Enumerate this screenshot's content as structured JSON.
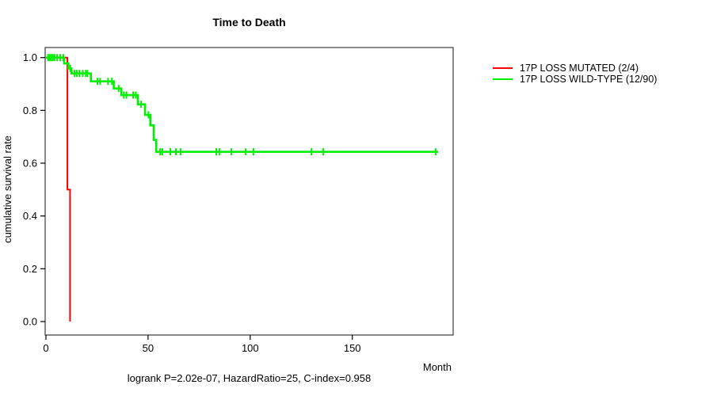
{
  "chart_data": {
    "type": "line",
    "subtype": "kaplan-meier-step",
    "title": "Time to Death",
    "xlabel": "Month",
    "ylabel": "cumulative survival rate",
    "annotation": "logrank P=2.02e-07, HazardRatio=25, C-index=0.958",
    "xlim": [
      0,
      199
    ],
    "ylim": [
      0.0,
      1.0
    ],
    "x_ticks": [
      0,
      50,
      100,
      150
    ],
    "y_ticks": [
      0.0,
      0.2,
      0.4,
      0.6,
      0.8,
      1.0
    ],
    "grid": false,
    "legend_position": "right-outside",
    "axis_color": "#555555",
    "series": [
      {
        "name": "17P LOSS MUTATED (2/4)",
        "color": "#ff0000",
        "steps": [
          [
            0,
            1.0
          ],
          [
            10.5,
            0.5
          ],
          [
            11.8,
            0.0
          ]
        ],
        "end_month": 11.8,
        "censors": []
      },
      {
        "name": "17P LOSS WILD-TYPE (12/90)",
        "color": "#00ee00",
        "steps": [
          [
            0,
            1.0
          ],
          [
            8.9,
            0.978
          ],
          [
            11.0,
            0.959
          ],
          [
            12.5,
            0.94
          ],
          [
            22.0,
            0.91
          ],
          [
            33.2,
            0.883
          ],
          [
            36.9,
            0.858
          ],
          [
            45.0,
            0.823
          ],
          [
            48.5,
            0.783
          ],
          [
            51.1,
            0.743
          ],
          [
            52.8,
            0.688
          ],
          [
            54.0,
            0.643
          ]
        ],
        "end_month": 192,
        "censors": [
          [
            1.0,
            1.0
          ],
          [
            1.8,
            1.0
          ],
          [
            2.6,
            1.0
          ],
          [
            3.4,
            1.0
          ],
          [
            4.2,
            1.0
          ],
          [
            5.5,
            1.0
          ],
          [
            7.0,
            1.0
          ],
          [
            8.5,
            1.0
          ],
          [
            11.9,
            0.959
          ],
          [
            14.0,
            0.94
          ],
          [
            15.1,
            0.94
          ],
          [
            16.4,
            0.94
          ],
          [
            18.0,
            0.94
          ],
          [
            19.5,
            0.94
          ],
          [
            20.3,
            0.94
          ],
          [
            25.2,
            0.91
          ],
          [
            26.5,
            0.91
          ],
          [
            30.4,
            0.91
          ],
          [
            32.3,
            0.91
          ],
          [
            35.6,
            0.883
          ],
          [
            38.1,
            0.858
          ],
          [
            39.4,
            0.858
          ],
          [
            42.7,
            0.858
          ],
          [
            44.0,
            0.858
          ],
          [
            46.6,
            0.823
          ],
          [
            50.2,
            0.783
          ],
          [
            55.9,
            0.643
          ],
          [
            57.0,
            0.643
          ],
          [
            60.9,
            0.643
          ],
          [
            63.6,
            0.643
          ],
          [
            65.9,
            0.643
          ],
          [
            83.4,
            0.643
          ],
          [
            85.0,
            0.643
          ],
          [
            90.8,
            0.643
          ],
          [
            97.8,
            0.643
          ],
          [
            101.6,
            0.643
          ],
          [
            130.0,
            0.643
          ],
          [
            135.8,
            0.643
          ],
          [
            190.8,
            0.643
          ]
        ]
      }
    ]
  }
}
